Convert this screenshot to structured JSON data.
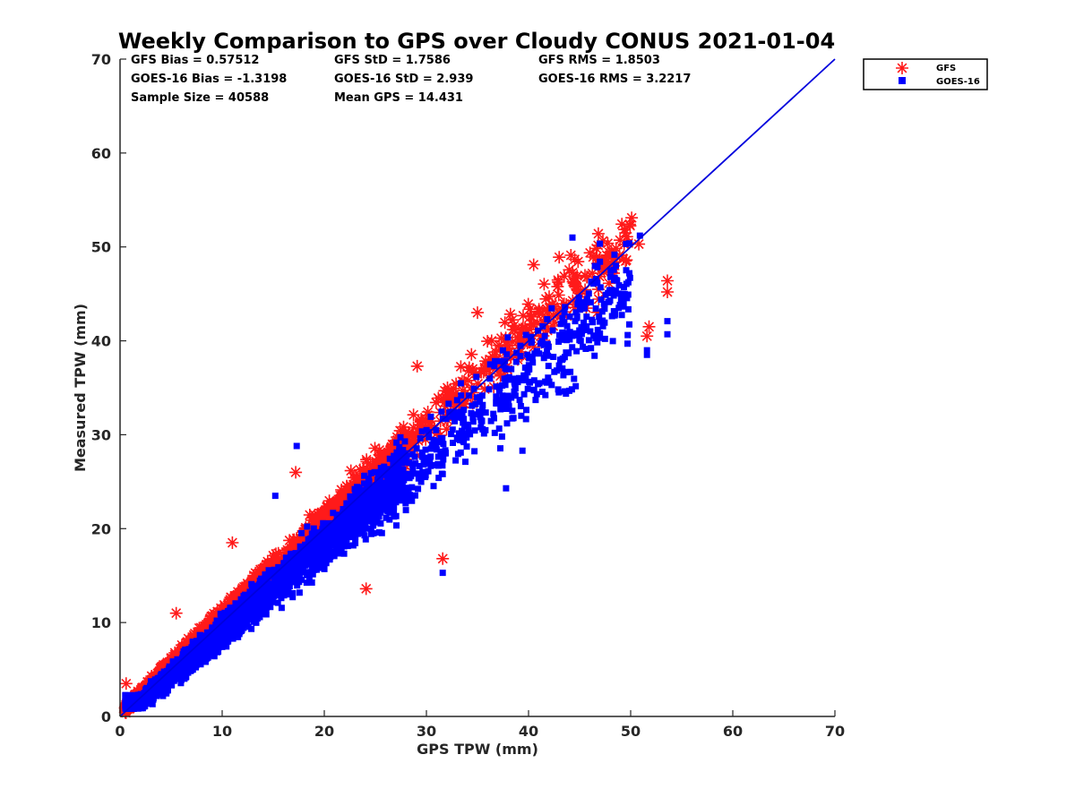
{
  "chart_data": {
    "type": "scatter",
    "title": "Weekly Comparison to GPS over Cloudy CONUS 2021-01-04",
    "xlabel": "GPS TPW (mm)",
    "ylabel": "Measured TPW (mm)",
    "xlim": [
      0,
      70
    ],
    "ylim": [
      0,
      70
    ],
    "xticks": [
      "0",
      "10",
      "20",
      "30",
      "40",
      "50",
      "60",
      "70"
    ],
    "yticks": [
      "0",
      "10",
      "20",
      "30",
      "40",
      "50",
      "60",
      "70"
    ],
    "grid": false,
    "legend_placement": "outside-top-right",
    "stats": [
      [
        "GFS Bias = 0.57512",
        "GFS StD = 1.7586",
        "GFS RMS = 1.8503"
      ],
      [
        "GOES-16 Bias = -1.3198",
        "GOES-16 StD = 2.939",
        "GOES-16 RMS = 3.2217"
      ],
      [
        "Sample Size = 40588",
        "Mean GPS = 14.431",
        ""
      ]
    ],
    "reference_line": {
      "x": [
        0,
        70
      ],
      "y": [
        0,
        70
      ],
      "color": "#0000dd"
    },
    "series": [
      {
        "name": "GFS",
        "marker": "asterisk",
        "color": "#ff1a1a",
        "spread": 1.8,
        "bias": 0.58,
        "outliers": [
          [
            53.6,
            46.4
          ],
          [
            53.6,
            45.2
          ],
          [
            51.8,
            41.5
          ],
          [
            51.6,
            40.5
          ],
          [
            50.1,
            53.1
          ],
          [
            49.9,
            52.4
          ],
          [
            31.6,
            16.8
          ],
          [
            24.1,
            13.6
          ],
          [
            50.8,
            50.3
          ],
          [
            49.5,
            48.5
          ],
          [
            40.5,
            48.1
          ],
          [
            43.0,
            48.9
          ],
          [
            17.2,
            26.0
          ],
          [
            11.0,
            18.5
          ],
          [
            35.0,
            43.0
          ],
          [
            29.1,
            37.3
          ],
          [
            5.5,
            11.0
          ],
          [
            0.6,
            3.5
          ]
        ]
      },
      {
        "name": "GOES-16",
        "marker": "square",
        "color": "#0000ff",
        "spread": 2.9,
        "bias": -1.32,
        "outliers": [
          [
            53.6,
            42.1
          ],
          [
            53.6,
            40.7
          ],
          [
            51.6,
            39.0
          ],
          [
            51.6,
            38.5
          ],
          [
            31.6,
            15.3
          ],
          [
            17.3,
            28.8
          ],
          [
            44.3,
            51.0
          ],
          [
            50.9,
            51.2
          ],
          [
            15.2,
            23.5
          ],
          [
            37.8,
            24.3
          ],
          [
            39.4,
            28.3
          ]
        ]
      }
    ]
  }
}
